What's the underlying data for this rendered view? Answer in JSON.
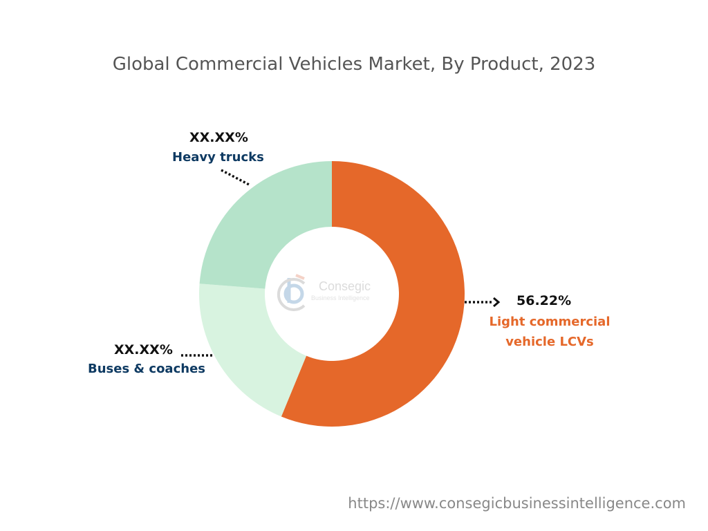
{
  "chart_data": {
    "type": "pie",
    "donut": true,
    "title": "Global Commercial Vehicles Market, By Product, 2023",
    "slices": [
      {
        "name": "Light commercial vehicle LCVs",
        "label_lines": [
          "Light commercial",
          "vehicle LCVs"
        ],
        "value_label": "56.22%",
        "value": 56.22,
        "color": "#E5682A"
      },
      {
        "name": "Buses & coaches",
        "value_label": "XX.XX%",
        "value": 20.0,
        "color": "#D8F3E0"
      },
      {
        "name": "Heavy trucks",
        "value_label": "XX.XX%",
        "value": 23.78,
        "color": "#B5E3CA"
      }
    ],
    "start": "top",
    "direction": "clockwise"
  },
  "logo": {
    "name": "Consegic",
    "tagline": "Business Intelligence"
  },
  "footer": {
    "url": "https://www.consegicbusinessintelligence.com"
  }
}
